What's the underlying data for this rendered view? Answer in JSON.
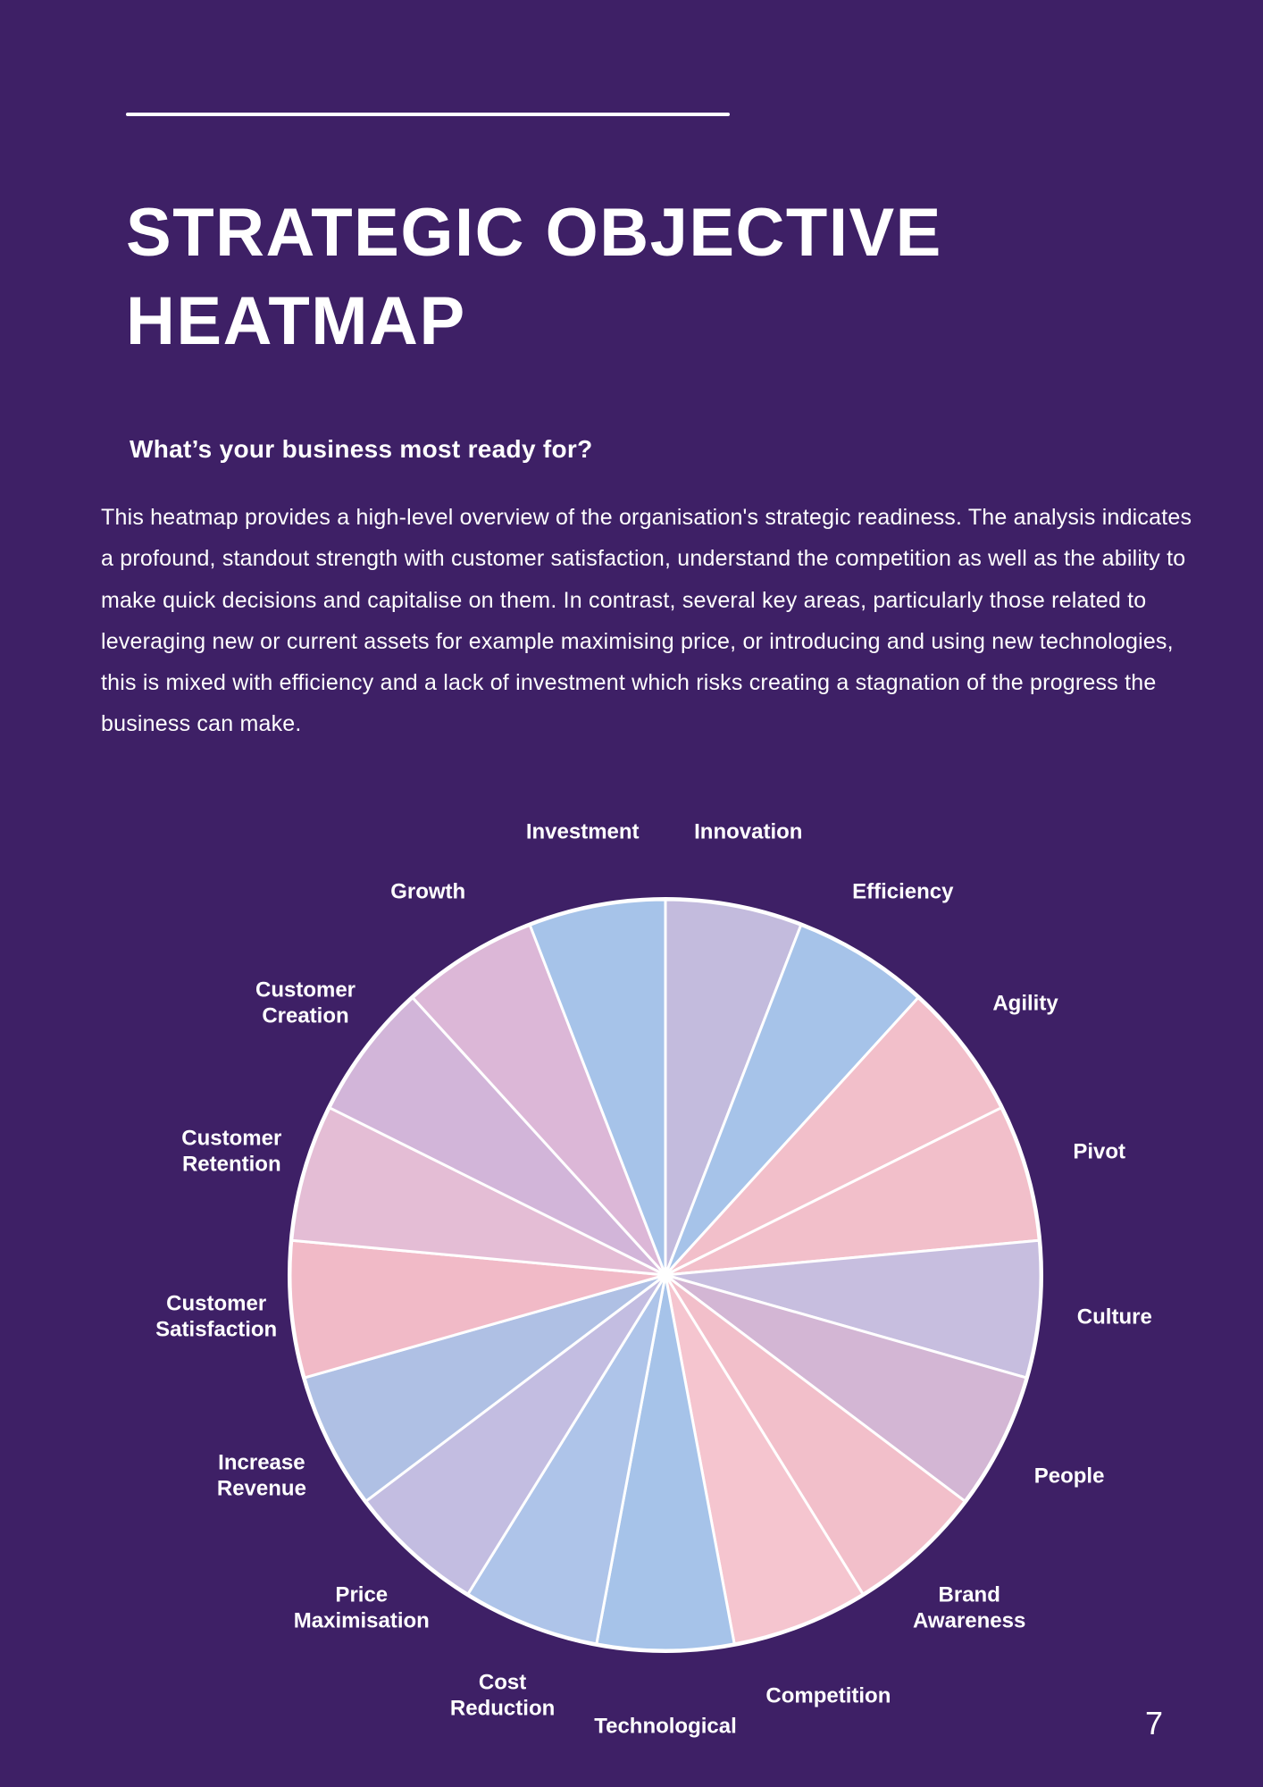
{
  "theme": {
    "background": "#3E2066",
    "text_color": "#FFFFFF"
  },
  "page": {
    "number": "7"
  },
  "header": {
    "title_line1": "STRATEGIC OBJECTIVE",
    "title_line2": "HEATMAP",
    "subtitle": "What’s your business most ready for?"
  },
  "intro": {
    "text": "This heatmap provides a high-level overview of the organisation's strategic readiness. The analysis indicates a profound, standout strength with customer satisfaction, understand the competition as well as the ability to make quick decisions and capitalise on them. In contrast, several key areas, particularly those related to leveraging new or current assets for example maximising price, or introducing and using new technologies, this is mixed with efficiency and a lack of investment which risks creating a stagnation of the progress the business can make."
  },
  "chart_data": {
    "type": "pie",
    "equal_slices": true,
    "order": "clockwise-from-top",
    "slice_angle_deg": 21.18,
    "legend": "none",
    "slices": [
      {
        "label": "Innovation",
        "color": "#C3BBDD"
      },
      {
        "label": "Efficiency",
        "color": "#A6C3E9"
      },
      {
        "label": "Agility",
        "color": "#F2BFCA"
      },
      {
        "label": "Pivot",
        "color": "#F2BFCA"
      },
      {
        "label": "Culture",
        "color": "#C7BEDF"
      },
      {
        "label": "People",
        "color": "#D3B6D4"
      },
      {
        "label": "Brand\nAwareness",
        "color": "#F2BFCA"
      },
      {
        "label": "Competition",
        "color": "#F5C5CF"
      },
      {
        "label": "Technological",
        "color": "#A6C3E9"
      },
      {
        "label": "Cost\nReduction",
        "color": "#AEC4E9"
      },
      {
        "label": "Price\nMaximisation",
        "color": "#C3BDE1"
      },
      {
        "label": "Increase\nRevenue",
        "color": "#AFC0E4"
      },
      {
        "label": "Customer\nSatisfaction",
        "color": "#F1BAC7"
      },
      {
        "label": "Customer\nRetention",
        "color": "#E4BDD5"
      },
      {
        "label": "Customer\nCreation",
        "color": "#D2B5D9"
      },
      {
        "label": "Growth",
        "color": "#DCB7D7"
      },
      {
        "label": "Investment",
        "color": "#A6C3E9"
      }
    ]
  }
}
